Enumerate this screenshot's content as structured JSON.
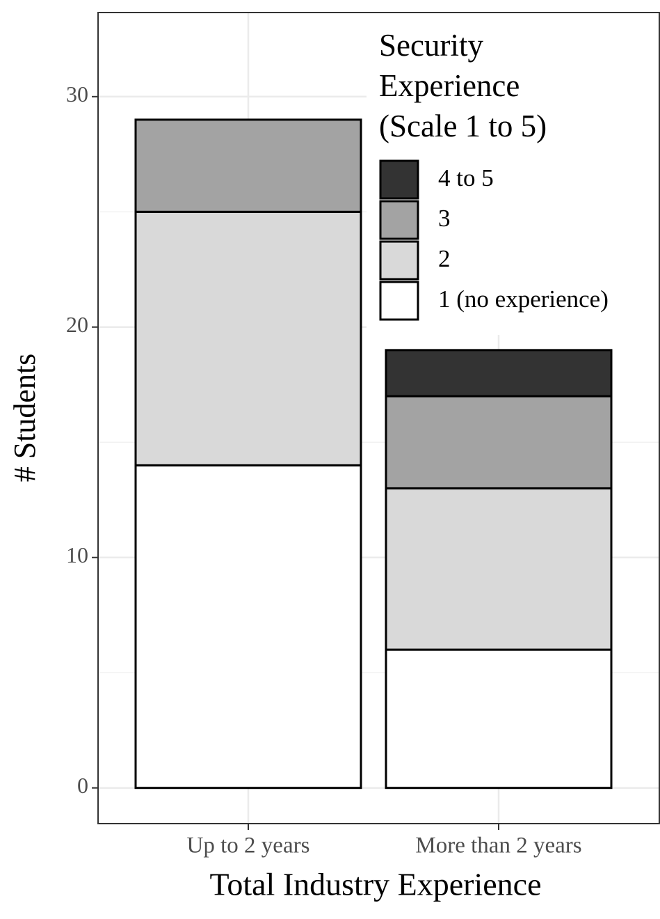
{
  "chart_data": {
    "type": "stacked_bar",
    "x_label": "Total Industry Experience",
    "y_label": "# Students",
    "categories": [
      "Up to 2 years",
      "More than 2 years"
    ],
    "series": [
      {
        "name": "1 (no experience)",
        "color": "#ffffff",
        "values": [
          14,
          6
        ]
      },
      {
        "name": "2",
        "color": "#d9d9d9",
        "values": [
          11,
          7
        ]
      },
      {
        "name": "3",
        "color": "#a3a3a3",
        "values": [
          4,
          4
        ]
      },
      {
        "name": "4 to 5",
        "color": "#333333",
        "values": [
          0,
          2
        ]
      }
    ],
    "legend_title": "Security Experience (Scale 1 to 5)",
    "legend_position": "top-right",
    "ylim": [
      -1.55,
      33.65
    ],
    "yticks": [
      0,
      10,
      20,
      30
    ],
    "grid": true
  }
}
